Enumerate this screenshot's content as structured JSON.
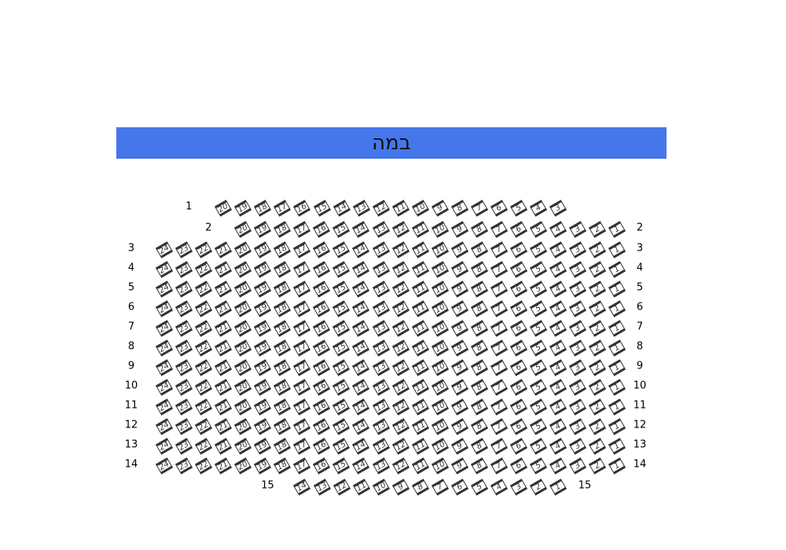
{
  "stage": {
    "label": "במה",
    "color": "#4577ea"
  },
  "seat_icon": "theater-seat-icon",
  "rows": [
    {
      "label": "1",
      "seats": [
        20,
        19,
        18,
        17,
        16,
        15,
        14,
        13,
        12,
        11,
        10,
        9,
        8,
        7,
        6,
        5,
        4,
        3
      ],
      "label_left": true,
      "label_right": false
    },
    {
      "label": "2",
      "seats": [
        20,
        19,
        18,
        17,
        16,
        15,
        14,
        13,
        12,
        11,
        10,
        9,
        8,
        7,
        6,
        5,
        4,
        3,
        2,
        1
      ],
      "label_left": true,
      "label_right": true
    },
    {
      "label": "3",
      "seats": [
        24,
        23,
        22,
        21,
        20,
        19,
        18,
        17,
        16,
        15,
        14,
        13,
        12,
        11,
        10,
        9,
        8,
        7,
        6,
        5,
        4,
        3,
        2,
        1
      ],
      "label_left": true,
      "label_right": true
    },
    {
      "label": "4",
      "seats": [
        24,
        23,
        22,
        21,
        20,
        19,
        18,
        17,
        16,
        15,
        14,
        13,
        12,
        11,
        10,
        9,
        8,
        7,
        6,
        5,
        4,
        3,
        2,
        1
      ],
      "label_left": true,
      "label_right": true
    },
    {
      "label": "5",
      "seats": [
        24,
        23,
        22,
        21,
        20,
        19,
        18,
        17,
        16,
        15,
        14,
        13,
        12,
        11,
        10,
        9,
        8,
        7,
        6,
        5,
        4,
        3,
        2,
        1
      ],
      "label_left": true,
      "label_right": true
    },
    {
      "label": "6",
      "seats": [
        24,
        23,
        22,
        21,
        20,
        19,
        18,
        17,
        16,
        15,
        14,
        13,
        12,
        11,
        10,
        9,
        8,
        7,
        6,
        5,
        4,
        3,
        2,
        1
      ],
      "label_left": true,
      "label_right": true
    },
    {
      "label": "7",
      "seats": [
        24,
        23,
        22,
        21,
        20,
        19,
        18,
        17,
        16,
        15,
        14,
        13,
        12,
        11,
        10,
        9,
        8,
        7,
        6,
        5,
        4,
        3,
        2,
        1
      ],
      "label_left": true,
      "label_right": true
    },
    {
      "label": "8",
      "seats": [
        24,
        23,
        22,
        21,
        20,
        19,
        18,
        17,
        16,
        15,
        14,
        13,
        12,
        11,
        10,
        9,
        8,
        7,
        6,
        5,
        4,
        3,
        2,
        1
      ],
      "label_left": true,
      "label_right": true
    },
    {
      "label": "9",
      "seats": [
        24,
        23,
        22,
        21,
        20,
        19,
        18,
        17,
        16,
        15,
        14,
        13,
        12,
        11,
        10,
        9,
        8,
        7,
        6,
        5,
        4,
        3,
        2,
        1
      ],
      "label_left": true,
      "label_right": true
    },
    {
      "label": "10",
      "seats": [
        24,
        23,
        22,
        21,
        20,
        19,
        18,
        17,
        16,
        15,
        14,
        13,
        12,
        11,
        10,
        9,
        8,
        7,
        6,
        5,
        4,
        3,
        2,
        1
      ],
      "label_left": true,
      "label_right": true
    },
    {
      "label": "11",
      "seats": [
        24,
        23,
        22,
        21,
        20,
        19,
        18,
        17,
        16,
        15,
        14,
        13,
        12,
        11,
        10,
        9,
        8,
        7,
        6,
        5,
        4,
        3,
        2,
        1
      ],
      "label_left": true,
      "label_right": true
    },
    {
      "label": "12",
      "seats": [
        24,
        23,
        22,
        21,
        20,
        19,
        18,
        17,
        16,
        15,
        14,
        13,
        12,
        11,
        10,
        9,
        8,
        7,
        6,
        5,
        4,
        3,
        2,
        1
      ],
      "label_left": true,
      "label_right": true
    },
    {
      "label": "13",
      "seats": [
        24,
        23,
        22,
        21,
        20,
        19,
        18,
        17,
        16,
        15,
        14,
        13,
        12,
        11,
        10,
        9,
        8,
        7,
        6,
        5,
        4,
        3,
        2,
        1
      ],
      "label_left": true,
      "label_right": true
    },
    {
      "label": "14",
      "seats": [
        24,
        23,
        22,
        21,
        20,
        19,
        18,
        17,
        16,
        15,
        14,
        13,
        12,
        11,
        10,
        9,
        8,
        7,
        6,
        5,
        4,
        3,
        2,
        1
      ],
      "label_left": true,
      "label_right": true
    },
    {
      "label": "15",
      "seats": [
        14,
        13,
        12,
        11,
        10,
        9,
        8,
        7,
        6,
        5,
        4,
        3,
        2,
        1
      ],
      "label_left": true,
      "label_right": true
    }
  ]
}
